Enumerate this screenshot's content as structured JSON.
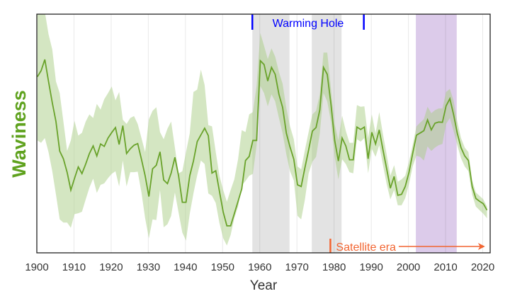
{
  "chart_data": {
    "type": "line",
    "title": "",
    "xlabel": "Year",
    "ylabel": "Waviness",
    "xlim": [
      1900,
      2022
    ],
    "ylim": [
      0,
      100
    ],
    "grid": "vertical",
    "x_ticks": [
      1900,
      1910,
      1920,
      1930,
      1940,
      1950,
      1960,
      1970,
      1980,
      1990,
      2000,
      2010,
      2020
    ],
    "x_start": 1900,
    "series": [
      {
        "values": [
          73.8,
          76.3,
          81.0,
          71.8,
          62.9,
          55.0,
          42.6,
          39.4,
          33.7,
          26.3,
          31.2,
          36.0,
          33.2,
          37.2,
          41.6,
          44.8,
          40.6,
          45.6,
          44.6,
          48.1,
          50.4,
          52.5,
          45.4,
          53.3,
          41.6,
          43.6,
          45.1,
          45.8,
          39.2,
          32.3,
          23.6,
          35.2,
          36.7,
          42.3,
          30.5,
          29.0,
          33.4,
          40.0,
          32.3,
          21.2,
          21.2,
          32.3,
          38.5,
          46.6,
          49.4,
          52.2,
          49.1,
          33.4,
          34.4,
          25.8,
          17.1,
          11.3,
          11.3,
          16.4,
          21.6,
          26.8,
          38.7,
          40.4,
          47.1,
          47.1,
          80.5,
          78.9,
          72.0,
          77.7,
          74.8,
          66.4,
          60.9,
          50.1,
          44.3,
          39.2,
          28.5,
          27.8,
          35.7,
          43.1,
          51.0,
          52.5,
          59.9,
          77.7,
          74.8,
          62.4,
          47.1,
          38.5,
          48.1,
          44.8,
          39.0,
          39.0,
          52.7,
          51.7,
          52.7,
          39.4,
          50.5,
          45.6,
          51.5,
          43.1,
          35.2,
          27.1,
          32.0,
          24.1,
          24.5,
          27.8,
          33.7,
          41.6,
          49.3,
          50.2,
          51.2,
          55.7,
          51.5,
          54.3,
          54.8,
          54.7,
          61.6,
          64.6,
          58.0,
          50.1,
          44.1,
          40.6,
          38.7,
          27.8,
          22.8,
          21.6,
          20.6,
          17.9
        ],
        "upper": [
          104,
          104,
          101,
          91.6,
          85.2,
          71.8,
          66.9,
          55.0,
          42.7,
          47.1,
          55.3,
          49.1,
          50.3,
          55.0,
          58.0,
          56.5,
          62.4,
          60.0,
          64.4,
          66.9,
          69.7,
          63.9,
          67.4,
          55.8,
          54.0,
          56.5,
          57.3,
          54.0,
          48.1,
          42.2,
          56.0,
          59.5,
          61.0,
          50.6,
          47.6,
          52.0,
          55.0,
          44.1,
          33.3,
          34.2,
          42.2,
          50.1,
          67.4,
          68.4,
          76.8,
          70.3,
          53.5,
          53.0,
          42.2,
          32.3,
          26.3,
          21.4,
          26.3,
          30.8,
          39.2,
          51.4,
          50.6,
          58.0,
          59.0,
          70.0,
          92.1,
          86.7,
          81.2,
          85.7,
          82.2,
          75.8,
          70.8,
          60.5,
          53.0,
          47.6,
          36.2,
          35.0,
          43.1,
          50.6,
          58.0,
          59.5,
          66.4,
          83.9,
          83.9,
          68.9,
          54.0,
          47.1,
          57.5,
          51.1,
          46.1,
          46.1,
          61.9,
          61.2,
          61.4,
          48.1,
          58.0,
          50.1,
          59.0,
          49.6,
          41.2,
          32.3,
          36.7,
          29.8,
          30.8,
          32.3,
          38.2,
          45.1,
          53.0,
          54.5,
          56.0,
          61.2,
          58.5,
          59.8,
          60.5,
          60.5,
          67.4,
          68.7,
          63.9,
          55.0,
          48.1,
          44.1,
          42.2,
          30.3,
          25.3,
          23.9,
          22.4,
          19.4
        ],
        "lower": [
          47.1,
          46.1,
          48.1,
          42.2,
          34.2,
          24.4,
          14.0,
          12.7,
          12.7,
          10.5,
          16.2,
          16.6,
          17.2,
          22.4,
          27.3,
          31.1,
          25.1,
          28.5,
          29.1,
          31.3,
          33.1,
          34.2,
          27.8,
          38.7,
          27.8,
          33.8,
          33.8,
          34.0,
          25.3,
          14.5,
          6.1,
          14.0,
          13.7,
          26.3,
          10.7,
          12.0,
          15.5,
          25.3,
          16.9,
          8.5,
          5.1,
          16.4,
          24.9,
          32.5,
          38.7,
          37.2,
          24.9,
          23.9,
          20.9,
          12.5,
          6.1,
          3.1,
          7.5,
          14.5,
          19.4,
          28.3,
          30.1,
          32.3,
          33.1,
          45.0,
          69.9,
          66.9,
          61.4,
          66.4,
          63.4,
          56.5,
          50.1,
          41.2,
          34.2,
          30.3,
          15.5,
          14.0,
          22.4,
          33.3,
          38.2,
          40.2,
          50.1,
          66.9,
          63.4,
          55.0,
          40.2,
          30.8,
          39.2,
          37.2,
          33.8,
          33.3,
          47.6,
          46.6,
          48.1,
          33.3,
          43.6,
          40.2,
          45.1,
          36.7,
          28.8,
          22.4,
          26.3,
          19.9,
          19.9,
          22.9,
          28.8,
          36.2,
          40.7,
          40.2,
          38.7,
          44.6,
          42.7,
          44.1,
          45.1,
          45.6,
          54.0,
          56.5,
          51.1,
          45.1,
          39.7,
          36.2,
          34.2,
          24.4,
          19.4,
          17.9,
          16.4,
          14.5
        ]
      }
    ],
    "shaded_periods": [
      {
        "start": 1958,
        "end": 1968,
        "color": "#e3e3e3"
      },
      {
        "start": 1974,
        "end": 1982,
        "color": "#e3e3e3"
      },
      {
        "start": 2002,
        "end": 2013,
        "color": "#dccbea"
      }
    ],
    "annotations": {
      "warming_hole": {
        "label": "Warming Hole",
        "start": 1958,
        "end": 1988,
        "color": "#0000ff"
      },
      "satellite_era": {
        "label": "Satellite era",
        "start": 1979,
        "end": 2021,
        "color": "#f26430"
      }
    },
    "colors": {
      "line": "#69a22a",
      "band": "#a9cd86",
      "ylabel": "#5fa21e"
    }
  }
}
